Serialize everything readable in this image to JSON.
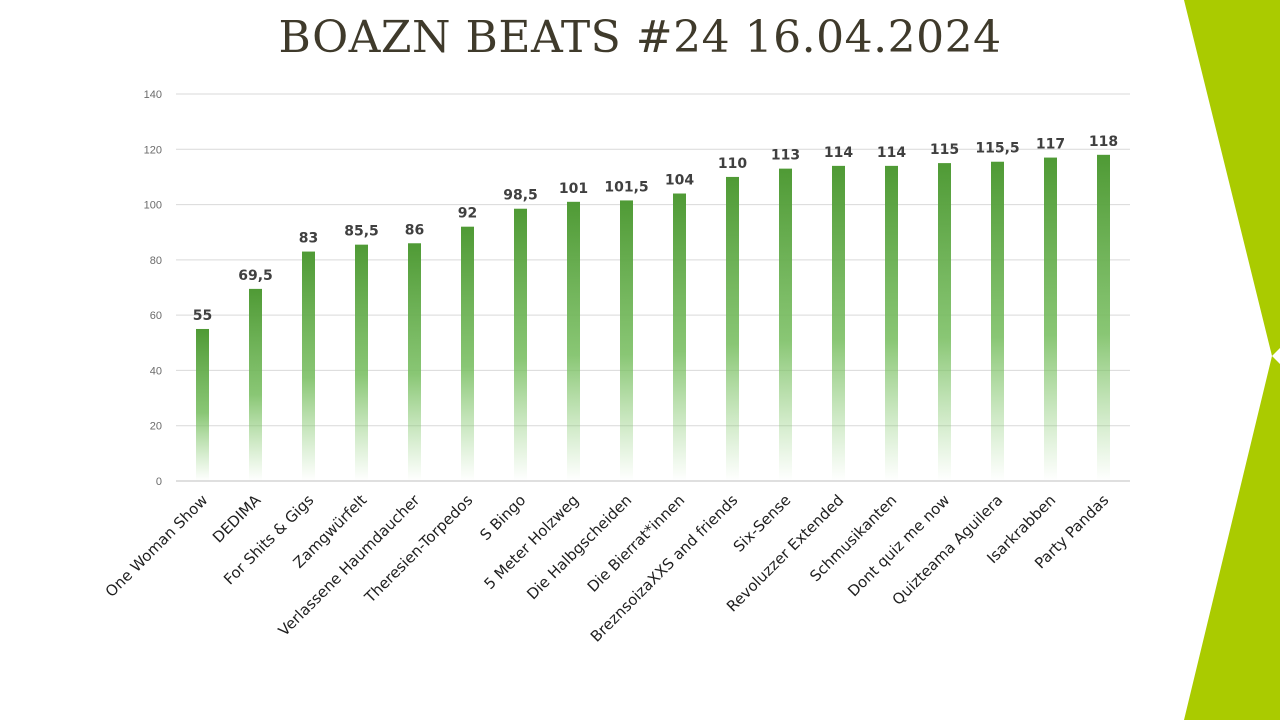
{
  "slide": {
    "title": "BOAZN BEATS #24 16.04.2024",
    "accent_color": "#aacb00"
  },
  "chart_data": {
    "type": "bar",
    "title": "BOAZN BEATS #24 16.04.2024",
    "xlabel": "",
    "ylabel": "",
    "ylim": [
      0,
      140
    ],
    "yticks": [
      0,
      20,
      40,
      60,
      80,
      100,
      120,
      140
    ],
    "grid": true,
    "legend": "none",
    "bar_color_top": "#4f9a35",
    "bar_color_bottom": "#8fd07a",
    "categories": [
      "One Woman Show",
      "DEDIMA",
      "For Shits & Gigs",
      "Zamgwürfelt",
      "Verlassene Haumdaucher",
      "Theresien-Torpedos",
      "S Bingo",
      "5 Meter Holzweg",
      "Die Halbgscheiden",
      "Die Bierrat*innen",
      "BreznsoizaXXS and friends",
      "Six-Sense",
      "Revoluzzer Extended",
      "Schmusikanten",
      "Dont quiz me now",
      "Quizteama Aguilera",
      "Isarkrabben",
      "Party Pandas"
    ],
    "values": [
      55,
      69.5,
      83,
      85.5,
      86,
      92,
      98.5,
      101,
      101.5,
      104,
      110,
      113,
      114,
      114,
      115,
      115.5,
      117,
      118
    ],
    "value_labels": [
      "55",
      "69,5",
      "83",
      "85,5",
      "86",
      "92",
      "98,5",
      "101",
      "101,5",
      "104",
      "110",
      "113",
      "114",
      "114",
      "115",
      "115,5",
      "117",
      "118"
    ]
  }
}
